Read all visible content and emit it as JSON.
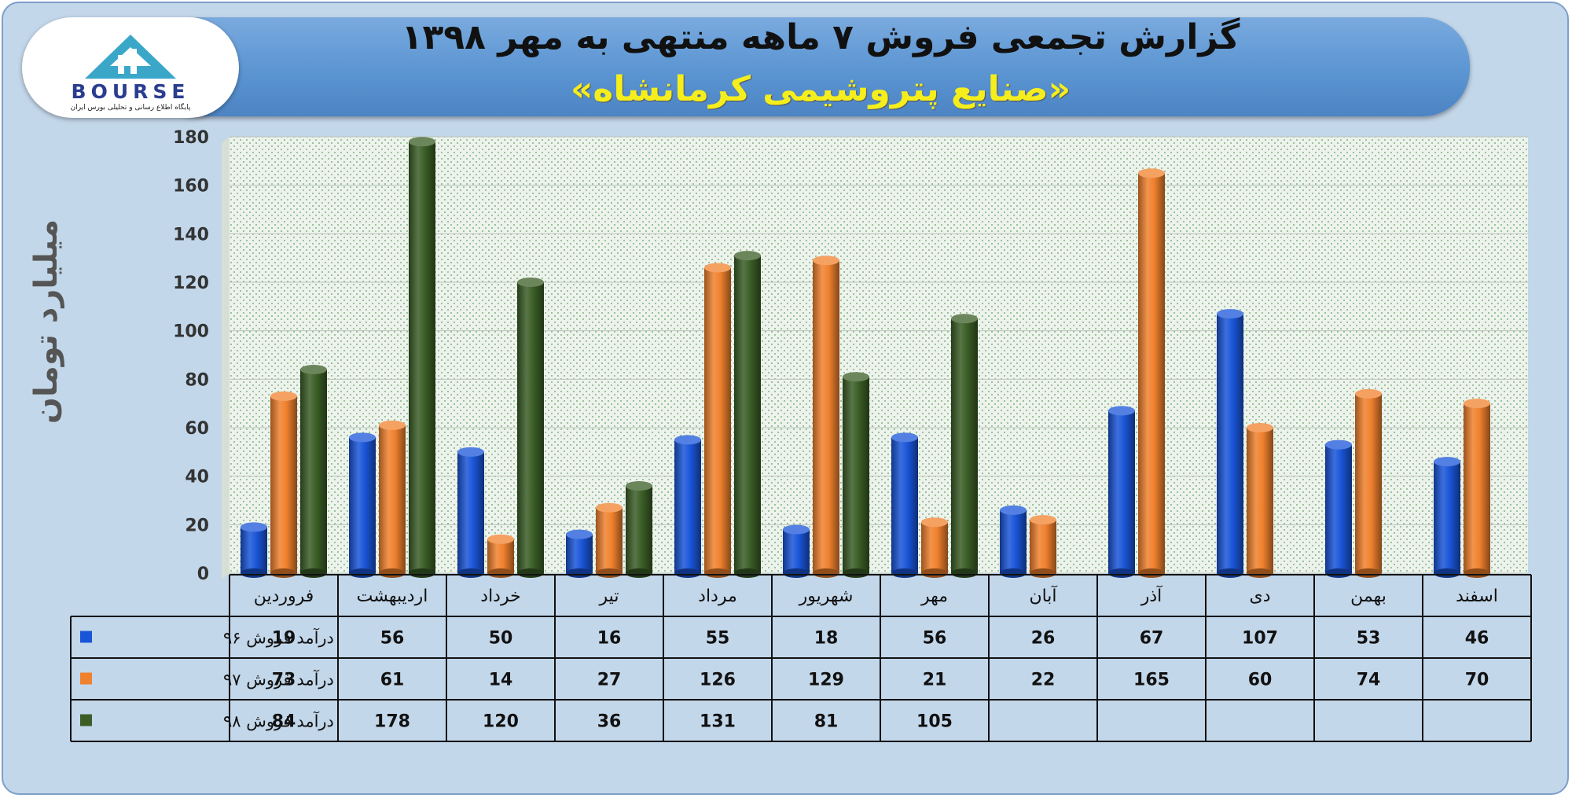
{
  "header": {
    "title": "گزارش تجمعی فروش ۷ ماهه منتهی به مهر ۱۳۹۸",
    "subtitle": "«صنایع پتروشیمی کرمانشاه»"
  },
  "logo": {
    "text": "BOURSE",
    "tagline": "پایگاه اطلاع رسانی و تحلیلی بورس ایران"
  },
  "chart_data": {
    "type": "bar",
    "title": "گزارش تجمعی فروش ۷ ماهه منتهی به مهر ۱۳۹۸",
    "subtitle": "«صنایع پتروشیمی کرمانشاه»",
    "ylabel": "میلیارد تومان",
    "ylim": [
      0,
      180
    ],
    "yticks": [
      0,
      20,
      40,
      60,
      80,
      100,
      120,
      140,
      160,
      180
    ],
    "grid": true,
    "legend_position": "table-left",
    "categories": [
      "فروردین",
      "اردیبهشت",
      "خرداد",
      "تیر",
      "مرداد",
      "شهریور",
      "مهر",
      "آبان",
      "آذر",
      "دی",
      "بهمن",
      "اسفند"
    ],
    "series": [
      {
        "name": "درآمد فروش ۹۶",
        "color": "#1a55d8",
        "values": [
          19,
          56,
          50,
          16,
          55,
          18,
          56,
          26,
          67,
          107,
          53,
          46
        ]
      },
      {
        "name": "درآمد فروش ۹۷",
        "color": "#f0812e",
        "values": [
          73,
          61,
          14,
          27,
          126,
          129,
          21,
          22,
          165,
          60,
          74,
          70
        ]
      },
      {
        "name": "درآمد فروش ۹۸",
        "color": "#3b5e26",
        "values": [
          84,
          178,
          120,
          36,
          131,
          81,
          105,
          null,
          null,
          null,
          null,
          null
        ]
      }
    ]
  }
}
